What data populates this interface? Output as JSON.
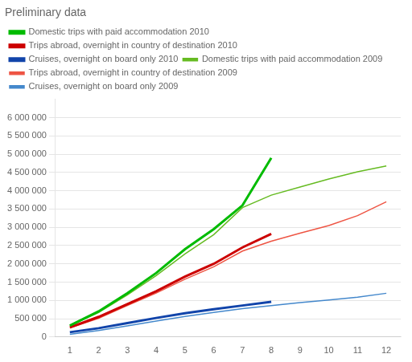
{
  "chart_data": {
    "type": "line",
    "title": "Preliminary data",
    "xlim": [
      0.5,
      12.5
    ],
    "xticks": [
      1,
      2,
      3,
      4,
      5,
      6,
      7,
      8,
      9,
      10,
      11,
      12
    ],
    "ylim": [
      0,
      6500000
    ],
    "yticks": [
      0,
      {
        "value": 500000,
        "label": "500 000"
      },
      {
        "value": 1000000,
        "label": "1 000 000"
      },
      {
        "value": 1500000,
        "label": "1 500 000"
      },
      {
        "value": 2000000,
        "label": "2 000 000"
      },
      {
        "value": 2500000,
        "label": "2 500 000"
      },
      {
        "value": 3000000,
        "label": "3 000 000"
      },
      {
        "value": 3500000,
        "label": "3 500 000"
      },
      {
        "value": 4000000,
        "label": "4 000 000"
      },
      {
        "value": 4500000,
        "label": "4 500 000"
      },
      {
        "value": 5000000,
        "label": "5 000 000"
      },
      {
        "value": 5500000,
        "label": "5 500 000"
      },
      {
        "value": 6000000,
        "label": "6 000 000"
      }
    ],
    "grid": "y",
    "legend": "upper left",
    "series": [
      {
        "name": "Domestic trips with paid accommodation 2010",
        "color": "#00BB00",
        "x": [
          1,
          2,
          3,
          4,
          5,
          6,
          7,
          8
        ],
        "values": [
          310000,
          700000,
          1200000,
          1750000,
          2400000,
          2950000,
          3600000,
          4900000
        ]
      },
      {
        "name": "Trips abroad, overnight in country of destination 2010",
        "color": "#CC0000",
        "x": [
          1,
          2,
          3,
          4,
          5,
          6,
          7,
          8
        ],
        "values": [
          260000,
          550000,
          900000,
          1250000,
          1650000,
          2000000,
          2450000,
          2820000
        ]
      },
      {
        "name": "Cruises, overnight on board only 2010",
        "color": "#1144AA",
        "x": [
          1,
          2,
          3,
          4,
          5,
          6,
          7,
          8
        ],
        "values": [
          130000,
          240000,
          380000,
          520000,
          650000,
          760000,
          860000,
          960000
        ]
      },
      {
        "name": "Domestic trips with paid accommodation 2009",
        "color": "#66BB22",
        "x": [
          1,
          2,
          3,
          4,
          5,
          6,
          7,
          8,
          9,
          10,
          11,
          12
        ],
        "values": [
          305000,
          670000,
          1150000,
          1680000,
          2270000,
          2800000,
          3540000,
          3880000,
          4100000,
          4320000,
          4520000,
          4680000
        ]
      },
      {
        "name": "Trips abroad, overnight in country of destination 2009",
        "color": "#EE5544",
        "x": [
          1,
          2,
          3,
          4,
          5,
          6,
          7,
          8,
          9,
          10,
          11,
          12
        ],
        "values": [
          245000,
          510000,
          860000,
          1200000,
          1580000,
          1920000,
          2350000,
          2620000,
          2840000,
          3050000,
          3320000,
          3700000
        ]
      },
      {
        "name": "Cruises, overnight on board only 2009",
        "color": "#4488CC",
        "x": [
          1,
          2,
          3,
          4,
          5,
          6,
          7,
          8,
          9,
          10,
          11,
          12
        ],
        "values": [
          70000,
          175000,
          305000,
          435000,
          560000,
          670000,
          775000,
          860000,
          940000,
          1010000,
          1090000,
          1195000
        ]
      }
    ]
  }
}
